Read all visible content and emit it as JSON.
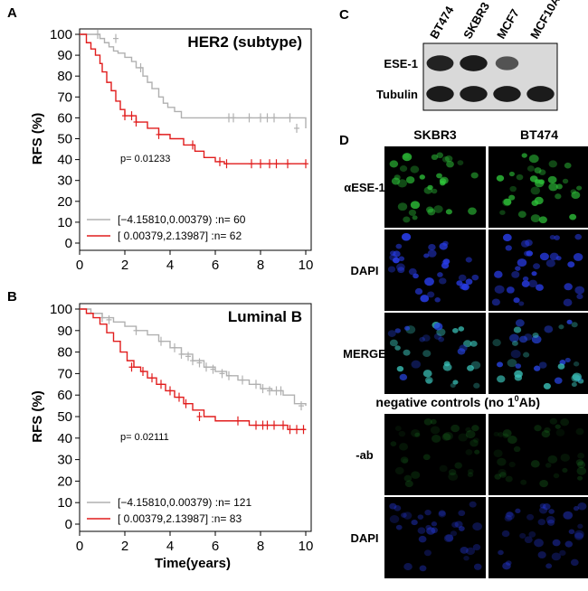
{
  "panels": {
    "A": "A",
    "B": "B",
    "C": "C",
    "D": "D"
  },
  "colors": {
    "low_group": "#b0b0b0",
    "high_group": "#e11d1d",
    "dapi": "#1a2bd6",
    "ese1": "#2ec43a"
  },
  "chart_data": [
    {
      "type": "line",
      "subtype": "kaplan-meier",
      "title": "HER2 (subtype)",
      "xlabel": "",
      "ylabel": "RFS (%)",
      "xlim": [
        0,
        10
      ],
      "ylim": [
        0,
        100
      ],
      "xticks": [
        "0",
        "2",
        "4",
        "6",
        "8",
        "10"
      ],
      "yticks": [
        "0",
        "10",
        "20",
        "30",
        "40",
        "50",
        "60",
        "70",
        "80",
        "90",
        "100"
      ],
      "p_value": "p= 0.01233",
      "series": [
        {
          "name": "[−4.15810,0.00379) :n= 60",
          "color": "gray",
          "steps": [
            [
              0,
              100
            ],
            [
              0.9,
              98
            ],
            [
              1.1,
              96
            ],
            [
              1.3,
              94
            ],
            [
              1.5,
              92
            ],
            [
              1.7,
              91
            ],
            [
              2.0,
              89
            ],
            [
              2.3,
              87
            ],
            [
              2.5,
              84
            ],
            [
              2.8,
              80
            ],
            [
              3.0,
              77
            ],
            [
              3.2,
              74
            ],
            [
              3.5,
              70
            ],
            [
              3.7,
              67
            ],
            [
              3.9,
              65
            ],
            [
              4.2,
              63
            ],
            [
              4.5,
              60
            ],
            [
              10,
              60
            ],
            [
              10,
              55
            ]
          ],
          "censors": [
            [
              0.8,
              100
            ],
            [
              1.6,
              98
            ],
            [
              2.7,
              84
            ],
            [
              6.6,
              60
            ],
            [
              6.8,
              60
            ],
            [
              7.5,
              60
            ],
            [
              8.0,
              60
            ],
            [
              8.3,
              60
            ],
            [
              8.6,
              60
            ],
            [
              9.3,
              60
            ],
            [
              9.6,
              55
            ]
          ]
        },
        {
          "name": "[ 0.00379,2.13987] :n= 62",
          "color": "red",
          "steps": [
            [
              0,
              100
            ],
            [
              0.3,
              96
            ],
            [
              0.5,
              93
            ],
            [
              0.7,
              90
            ],
            [
              0.9,
              86
            ],
            [
              1.0,
              82
            ],
            [
              1.2,
              77
            ],
            [
              1.4,
              73
            ],
            [
              1.6,
              68
            ],
            [
              1.8,
              64
            ],
            [
              2.0,
              61
            ],
            [
              2.5,
              58
            ],
            [
              3.0,
              55
            ],
            [
              3.5,
              52
            ],
            [
              4.0,
              50
            ],
            [
              4.6,
              47
            ],
            [
              5.1,
              44
            ],
            [
              5.5,
              41
            ],
            [
              6.0,
              39
            ],
            [
              6.4,
              38
            ],
            [
              10,
              38
            ]
          ],
          "censors": [
            [
              2.0,
              61
            ],
            [
              2.3,
              61
            ],
            [
              2.5,
              58
            ],
            [
              3.5,
              52
            ],
            [
              5.0,
              47
            ],
            [
              6.2,
              39
            ],
            [
              6.5,
              38
            ],
            [
              7.6,
              38
            ],
            [
              8.0,
              38
            ],
            [
              8.4,
              38
            ],
            [
              8.7,
              38
            ],
            [
              9.2,
              38
            ],
            [
              10.0,
              38
            ]
          ]
        }
      ]
    },
    {
      "type": "line",
      "subtype": "kaplan-meier",
      "title": "Luminal B",
      "xlabel": "Time(years)",
      "ylabel": "RFS (%)",
      "xlim": [
        0,
        10
      ],
      "ylim": [
        0,
        100
      ],
      "xticks": [
        "0",
        "2",
        "4",
        "6",
        "8",
        "10"
      ],
      "yticks": [
        "0",
        "10",
        "20",
        "30",
        "40",
        "50",
        "60",
        "70",
        "80",
        "90",
        "100"
      ],
      "p_value": "p= 0.02111",
      "series": [
        {
          "name": "[−4.15810,0.00379) :n= 121",
          "color": "gray",
          "steps": [
            [
              0,
              100
            ],
            [
              0.5,
              98
            ],
            [
              1.0,
              96
            ],
            [
              1.5,
              94
            ],
            [
              2.0,
              92
            ],
            [
              2.5,
              90
            ],
            [
              3.0,
              88
            ],
            [
              3.5,
              85
            ],
            [
              4.0,
              82
            ],
            [
              4.5,
              79
            ],
            [
              5.0,
              76
            ],
            [
              5.5,
              73
            ],
            [
              6.0,
              71
            ],
            [
              6.5,
              69
            ],
            [
              7.0,
              67
            ],
            [
              7.5,
              65
            ],
            [
              8.0,
              63
            ],
            [
              8.5,
              62
            ],
            [
              9.0,
              60
            ],
            [
              9.5,
              56
            ],
            [
              10,
              55
            ]
          ],
          "censors": [
            [
              1.0,
              96
            ],
            [
              1.3,
              95
            ],
            [
              2.5,
              90
            ],
            [
              3.6,
              85
            ],
            [
              4.2,
              82
            ],
            [
              4.5,
              79
            ],
            [
              4.8,
              78
            ],
            [
              5.0,
              76
            ],
            [
              5.3,
              75
            ],
            [
              5.6,
              73
            ],
            [
              5.9,
              72
            ],
            [
              6.3,
              70
            ],
            [
              6.6,
              69
            ],
            [
              7.2,
              67
            ],
            [
              7.8,
              65
            ],
            [
              8.1,
              63
            ],
            [
              8.4,
              62
            ],
            [
              8.7,
              62
            ],
            [
              8.9,
              62
            ],
            [
              9.8,
              55
            ]
          ]
        },
        {
          "name": "[ 0.00379,2.13987] :n= 83",
          "color": "red",
          "steps": [
            [
              0,
              100
            ],
            [
              0.3,
              98
            ],
            [
              0.6,
              96
            ],
            [
              0.9,
              93
            ],
            [
              1.2,
              89
            ],
            [
              1.5,
              85
            ],
            [
              1.8,
              80
            ],
            [
              2.1,
              76
            ],
            [
              2.4,
              73
            ],
            [
              2.7,
              71
            ],
            [
              3.0,
              68
            ],
            [
              3.4,
              65
            ],
            [
              3.8,
              62
            ],
            [
              4.2,
              59
            ],
            [
              4.6,
              56
            ],
            [
              5.0,
              53
            ],
            [
              5.5,
              50
            ],
            [
              6.0,
              48
            ],
            [
              7.5,
              46
            ],
            [
              9.2,
              44
            ],
            [
              10,
              44
            ]
          ],
          "censors": [
            [
              2.3,
              73
            ],
            [
              2.8,
              71
            ],
            [
              3.2,
              68
            ],
            [
              3.6,
              65
            ],
            [
              4.0,
              62
            ],
            [
              4.4,
              59
            ],
            [
              4.7,
              56
            ],
            [
              5.3,
              50
            ],
            [
              7.0,
              48
            ],
            [
              7.8,
              46
            ],
            [
              8.1,
              46
            ],
            [
              8.3,
              46
            ],
            [
              8.6,
              46
            ],
            [
              9.0,
              46
            ],
            [
              9.3,
              44
            ],
            [
              9.6,
              44
            ],
            [
              9.9,
              44
            ]
          ]
        }
      ]
    }
  ],
  "western_blot": {
    "lanes": [
      "BT474",
      "SKBR3",
      "MCF7",
      "MCF10A"
    ],
    "rows": [
      {
        "label": "ESE-1",
        "intensities": [
          0.9,
          0.95,
          0.55,
          0.0
        ]
      },
      {
        "label": "Tubulin",
        "intensities": [
          0.95,
          0.95,
          0.95,
          0.95
        ]
      }
    ]
  },
  "microscopy": {
    "columns": [
      "SKBR3",
      "BT474"
    ],
    "rows": [
      {
        "label": "αESE-1",
        "stain": "ese1",
        "level": 0.8
      },
      {
        "label": "DAPI",
        "stain": "dapi",
        "level": 0.8
      },
      {
        "label": "MERGE",
        "stain": "merge",
        "level": 0.8
      }
    ],
    "controls_heading": "negative controls (no 1",
    "controls_heading_sup": "0",
    "controls_heading_tail": "Ab)",
    "control_rows": [
      {
        "label": "-ab",
        "stain": "ese1",
        "level": 0.2
      },
      {
        "label": "DAPI",
        "stain": "dapi",
        "level": 0.35
      }
    ]
  }
}
